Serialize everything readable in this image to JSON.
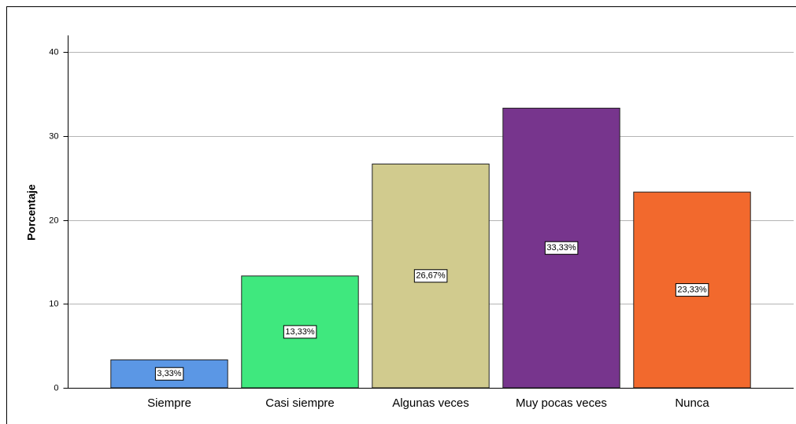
{
  "chart_data": {
    "type": "bar",
    "y_label": "Porcentaje",
    "categories": [
      "Siempre",
      "Casi siempre",
      "Algunas veces",
      "Muy pocas veces",
      "Nunca"
    ],
    "values": [
      3.33,
      13.33,
      26.67,
      33.33,
      23.33
    ],
    "value_labels": [
      "3,33%",
      "13,33%",
      "26,67%",
      "33,33%",
      "23,33%"
    ],
    "colors": [
      "#5b97e5",
      "#3fe87e",
      "#d1cb8e",
      "#77358d",
      "#f2692d"
    ],
    "ylim": [
      0,
      42
    ],
    "yticks": [
      0,
      10,
      20,
      30,
      40
    ],
    "grid": true
  }
}
